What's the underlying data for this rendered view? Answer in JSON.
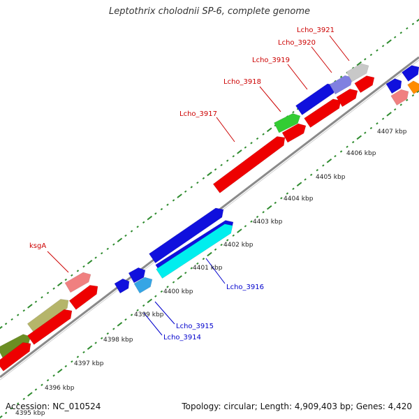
{
  "title": "Leptothrix cholodnii SP-6, complete genome",
  "footer": {
    "accession": "Accession: NC_010524",
    "summary": "Topology: circular; Length: 4,909,403 bp; Genes: 4,420"
  },
  "colors": {
    "backbone": "#8a8a8a",
    "tick": "#2e8b2e",
    "label_red": "#cc0000",
    "label_blue": "#0000cc"
  },
  "ticks": [
    {
      "label": "4395 kbp"
    },
    {
      "label": "4396 kbp"
    },
    {
      "label": "4397 kbp"
    },
    {
      "label": "4398 kbp"
    },
    {
      "label": "4399 kbp"
    },
    {
      "label": "4400 kbp"
    },
    {
      "label": "4401 kbp"
    },
    {
      "label": "4402 kbp"
    },
    {
      "label": "4403 kbp"
    },
    {
      "label": "4404 kbp"
    },
    {
      "label": "4405 kbp"
    },
    {
      "label": "4406 kbp"
    },
    {
      "label": "4407 kbp"
    }
  ],
  "gene_labels": [
    {
      "text": "ksgA",
      "color": "#cc0000"
    },
    {
      "text": "Lcho_3917",
      "color": "#cc0000"
    },
    {
      "text": "Lcho_3918",
      "color": "#cc0000"
    },
    {
      "text": "Lcho_3919",
      "color": "#cc0000"
    },
    {
      "text": "Lcho_3920",
      "color": "#cc0000"
    },
    {
      "text": "Lcho_3921",
      "color": "#cc0000"
    },
    {
      "text": "Lcho_3916",
      "color": "#0000cc"
    },
    {
      "text": "Lcho_3915",
      "color": "#0000cc"
    },
    {
      "text": "Lcho_3914",
      "color": "#0000cc"
    }
  ],
  "features": [
    {
      "color": "#6b8e23"
    },
    {
      "color": "#b5b56a"
    },
    {
      "color": "#f08080"
    },
    {
      "color": "#ee0000"
    },
    {
      "color": "#ee0000"
    },
    {
      "color": "#ee0000"
    },
    {
      "color": "#1010dd"
    },
    {
      "color": "#1010dd"
    },
    {
      "color": "#1010dd"
    },
    {
      "color": "#35a5e5"
    },
    {
      "color": "#1010dd"
    },
    {
      "color": "#00eeee"
    },
    {
      "color": "#ee0000"
    },
    {
      "color": "#ee0000"
    },
    {
      "color": "#33cc33"
    },
    {
      "color": "#ee0000"
    },
    {
      "color": "#1010dd"
    },
    {
      "color": "#8080e0"
    },
    {
      "color": "#c8c8c8"
    },
    {
      "color": "#ee0000"
    },
    {
      "color": "#ee0000"
    },
    {
      "color": "#1010dd"
    },
    {
      "color": "#f08080"
    },
    {
      "color": "#1010dd"
    },
    {
      "color": "#ff8c00"
    }
  ]
}
